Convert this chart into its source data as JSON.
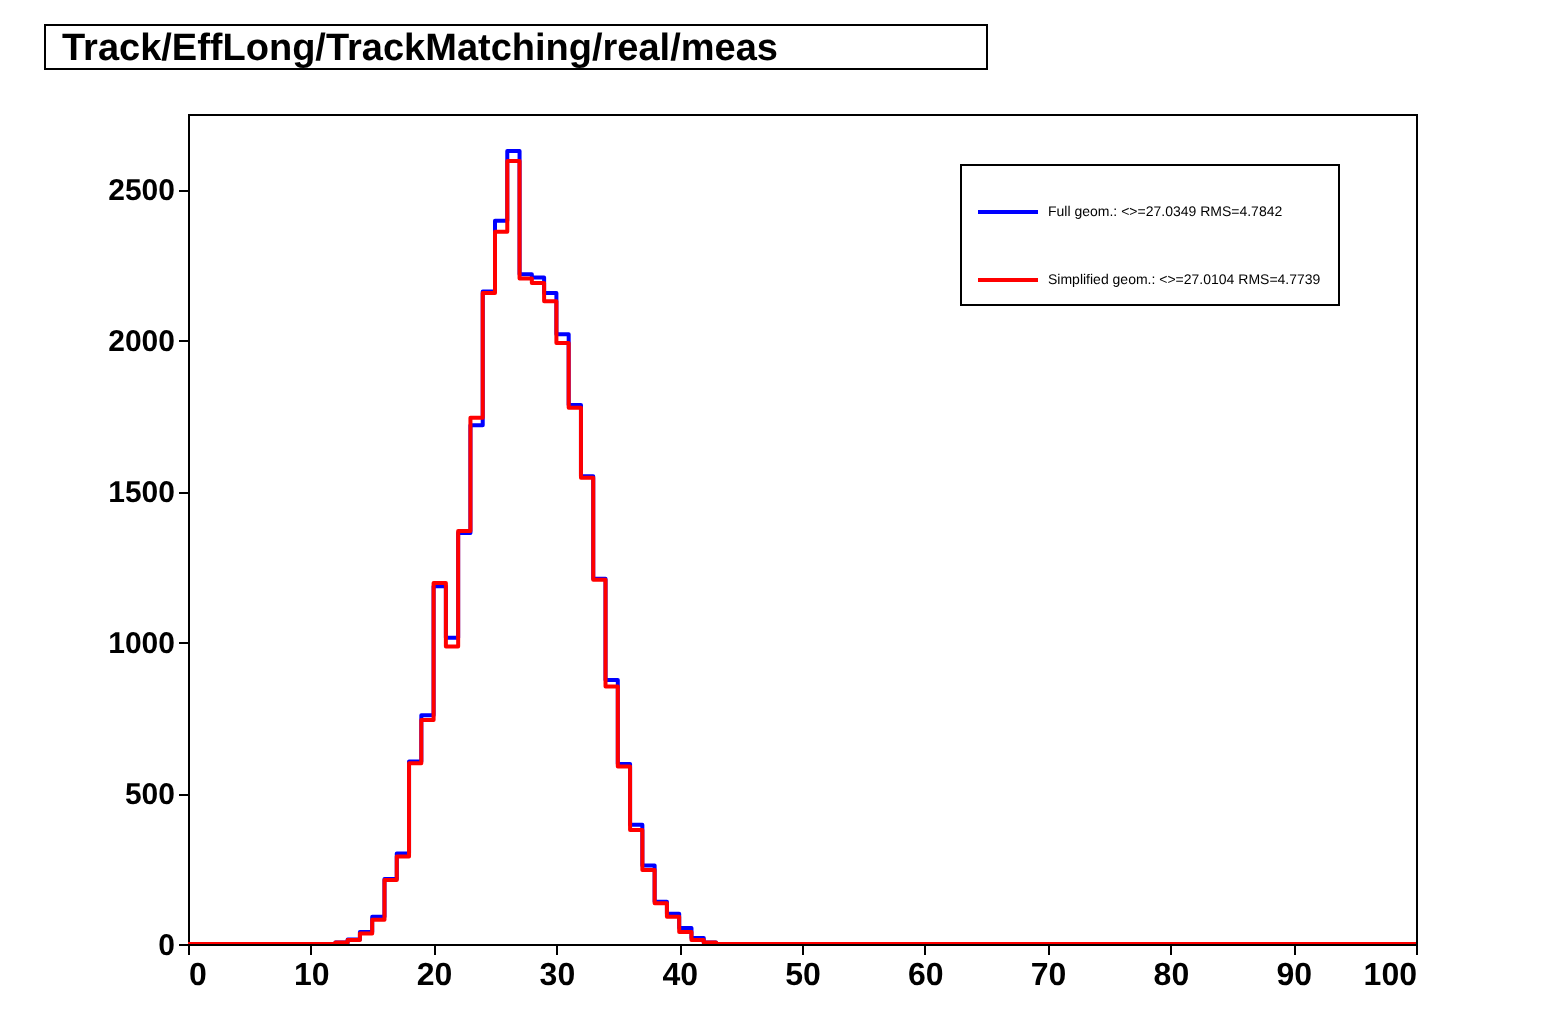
{
  "chart_data": {
    "type": "histogram",
    "title": "Track/EffLong/TrackMatching/real/meas",
    "bins": [
      0,
      1,
      2,
      3,
      4,
      5,
      6,
      7,
      8,
      9,
      10,
      11,
      12,
      13,
      14,
      15,
      16,
      17,
      18,
      19,
      20,
      21,
      22,
      23,
      24,
      25,
      26,
      27,
      28,
      29,
      30,
      31,
      32,
      33,
      34,
      35,
      36,
      37,
      38,
      39,
      40,
      41,
      42,
      43,
      44,
      45,
      46,
      47,
      48,
      49,
      50,
      51,
      52,
      53,
      54,
      55,
      56,
      57,
      58,
      59,
      60,
      61,
      62,
      63,
      64,
      65,
      66,
      67,
      68,
      69,
      70,
      71,
      72,
      73,
      74,
      75,
      76,
      77,
      78,
      79,
      80,
      81,
      82,
      83,
      84,
      85,
      86,
      87,
      88,
      89,
      90,
      91,
      92,
      93,
      94,
      95,
      96,
      97,
      98,
      99,
      100
    ],
    "series": [
      {
        "name": "Full geom.: <>=27.0349 RMS=4.7842",
        "color": "#0000ff",
        "values": [
          0,
          0,
          0,
          0,
          0,
          0,
          0,
          0,
          0,
          0,
          0,
          0,
          5,
          15,
          40,
          90,
          215,
          300,
          605,
          758,
          1185,
          1015,
          1362,
          1719,
          2162,
          2396,
          2627,
          2219,
          2208,
          2157,
          2020,
          1786,
          1550,
          1210,
          875,
          596,
          395,
          260,
          140,
          100,
          53,
          20,
          5,
          0,
          0,
          0,
          0,
          0,
          0,
          0,
          0,
          0,
          0,
          0,
          0,
          0,
          0,
          0,
          0,
          0,
          0,
          0,
          0,
          0,
          0,
          0,
          0,
          0,
          0,
          0,
          0,
          0,
          0,
          0,
          0,
          0,
          0,
          0,
          0,
          0,
          0,
          0,
          0,
          0,
          0,
          0,
          0,
          0,
          0,
          0,
          0,
          0,
          0,
          0,
          0,
          0,
          0,
          0,
          0,
          0
        ]
      },
      {
        "name": "Simplified geom.: <>=27.0104 RMS=4.7739",
        "color": "#ff0000",
        "values": [
          0,
          0,
          0,
          0,
          0,
          0,
          0,
          0,
          0,
          0,
          0,
          0,
          5,
          13,
          35,
          80,
          212,
          290,
          599,
          742,
          1196,
          986,
          1368,
          1744,
          2157,
          2360,
          2594,
          2205,
          2190,
          2130,
          1991,
          1777,
          1545,
          1207,
          853,
          588,
          378,
          245,
          135,
          90,
          40,
          13,
          5,
          0,
          0,
          0,
          0,
          0,
          0,
          0,
          0,
          0,
          0,
          0,
          0,
          0,
          0,
          0,
          0,
          0,
          0,
          0,
          0,
          0,
          0,
          0,
          0,
          0,
          0,
          0,
          0,
          0,
          0,
          0,
          0,
          0,
          0,
          0,
          0,
          0,
          0,
          0,
          0,
          0,
          0,
          0,
          0,
          0,
          0,
          0,
          0,
          0,
          0,
          0,
          0,
          0,
          0,
          0,
          0,
          0
        ]
      }
    ],
    "xlim": [
      0,
      100
    ],
    "xticks": [
      0,
      10,
      20,
      30,
      40,
      50,
      60,
      70,
      80,
      90,
      100
    ],
    "ylim": [
      0,
      2750
    ],
    "yticks": [
      0,
      500,
      1000,
      1500,
      2000,
      2500
    ],
    "grid": false,
    "legend": "top right"
  }
}
